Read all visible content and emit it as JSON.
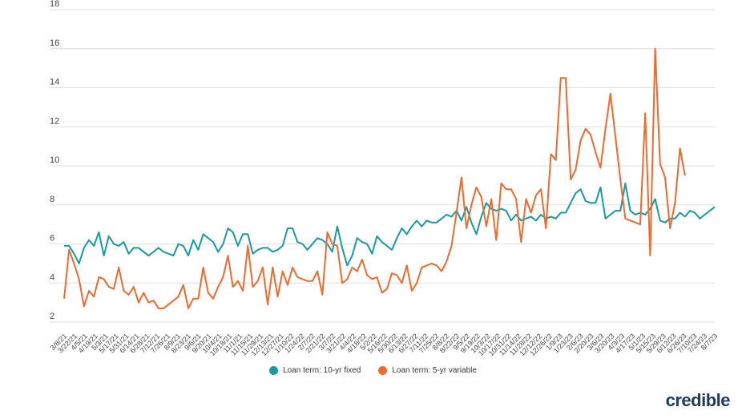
{
  "chart_data": {
    "type": "line",
    "title": "",
    "xlabel": "",
    "ylabel": "",
    "ylim": [
      2,
      18
    ],
    "yticks": [
      2,
      4,
      6,
      8,
      10,
      12,
      14,
      16,
      18
    ],
    "xtick_labels": [
      "3/8/21",
      "3/22/21",
      "4/5/21",
      "4/19/21",
      "5/3/21",
      "5/17/21",
      "5/31/21",
      "6/14/21",
      "6/28/21",
      "7/12/21",
      "7/26/21",
      "8/9/21",
      "8/23/21",
      "9/6/21",
      "9/20/21",
      "10/4/21",
      "10/18/21",
      "11/1/21",
      "11/15/21",
      "11/29/21",
      "12/13/21",
      "12/27/21",
      "1/10/22",
      "1/24/22",
      "2/7/22",
      "2/21/22",
      "3/7/22",
      "3/21/22",
      "4/4/22",
      "4/18/22",
      "5/2/22",
      "5/16/22",
      "5/30/22",
      "6/13/22",
      "6/27/22",
      "7/11/22",
      "7/25/22",
      "8/8/22",
      "8/22/22",
      "9/5/22",
      "9/19/22",
      "10/3/22",
      "10/17/22",
      "10/31/22",
      "11/14/22",
      "11/28/22",
      "12/12/22",
      "12/26/22",
      "1/9/23",
      "1/23/23",
      "2/6/23",
      "2/20/23",
      "3/6/23",
      "3/20/23",
      "4/3/23",
      "4/17/23",
      "5/1/23",
      "5/15/23",
      "5/29/23",
      "6/12/23",
      "6/26/23",
      "7/10/23",
      "7/24/23",
      "8/7/23"
    ],
    "legend_position": "bottom-center",
    "series": [
      {
        "name": "Loan term: 10-yr fixed",
        "color": "#1a9aa0",
        "values": [
          5.9,
          5.9,
          5.5,
          5.0,
          5.8,
          6.2,
          5.9,
          6.6,
          5.4,
          6.4,
          6.0,
          5.9,
          6.1,
          5.5,
          5.8,
          5.8,
          5.6,
          5.4,
          5.6,
          5.8,
          5.6,
          5.5,
          5.4,
          6.0,
          5.9,
          5.4,
          6.2,
          5.7,
          6.5,
          6.3,
          6.1,
          5.6,
          6.0,
          6.8,
          6.6,
          5.9,
          6.5,
          6.5,
          5.5,
          5.7,
          5.8,
          5.8,
          5.6,
          5.7,
          5.9,
          6.8,
          6.8,
          6.1,
          6.0,
          5.7,
          6.0,
          6.3,
          6.2,
          6.0,
          5.6,
          6.9,
          5.8,
          4.9,
          5.4,
          6.3,
          6.1,
          6.0,
          5.5,
          6.4,
          6.1,
          5.9,
          5.7,
          6.3,
          6.8,
          6.5,
          6.9,
          7.2,
          6.9,
          7.2,
          7.1,
          7.1,
          7.3,
          7.5,
          7.4,
          7.7,
          7.2,
          7.9,
          7.1,
          6.5,
          7.4,
          8.1,
          7.8,
          7.7,
          7.8,
          7.7,
          7.2,
          7.5,
          7.2,
          7.3,
          7.4,
          7.2,
          7.5,
          7.3,
          7.4,
          7.3,
          7.6,
          7.6,
          8.1,
          8.6,
          8.8,
          8.2,
          8.1,
          8.1,
          8.9,
          7.3,
          7.5,
          7.7,
          7.7,
          9.1,
          7.7,
          7.5,
          7.6,
          7.5,
          7.8,
          8.3,
          7.2,
          7.1,
          7.3,
          7.3,
          7.6,
          7.4,
          7.7,
          7.6,
          7.3,
          7.5,
          7.7,
          7.9
        ]
      },
      {
        "name": "Loan term: 5-yr variable",
        "color": "#ec6b2e",
        "values": [
          3.2,
          5.7,
          5.0,
          4.2,
          2.8,
          3.6,
          3.3,
          4.3,
          4.2,
          3.8,
          3.7,
          4.8,
          3.6,
          3.4,
          3.8,
          3.0,
          3.5,
          3.0,
          3.1,
          2.7,
          2.7,
          2.9,
          3.1,
          3.3,
          3.9,
          2.7,
          3.2,
          3.2,
          4.8,
          3.5,
          3.2,
          3.8,
          4.3,
          5.4,
          3.8,
          4.1,
          3.6,
          5.9,
          3.8,
          4.1,
          4.8,
          2.9,
          4.8,
          3.3,
          4.6,
          3.9,
          4.8,
          4.3,
          4.2,
          4.1,
          4.1,
          4.6,
          3.4,
          6.6,
          6.0,
          5.9,
          4.0,
          4.2,
          4.8,
          4.6,
          5.2,
          4.4,
          4.2,
          4.3,
          3.5,
          3.7,
          4.5,
          4.4,
          4.0,
          4.9,
          3.6,
          4.0,
          4.8,
          4.9,
          5.0,
          4.9,
          4.6,
          5.1,
          5.9,
          7.6,
          9.4,
          6.8,
          8.0,
          8.9,
          8.4,
          6.9,
          8.3,
          6.2,
          9.1,
          8.8,
          8.8,
          8.3,
          6.1,
          8.3,
          7.6,
          8.5,
          8.8,
          6.8,
          10.6,
          10.3,
          14.5,
          14.5,
          9.3,
          9.8,
          11.3,
          11.9,
          11.6,
          10.7,
          9.9,
          11.9,
          13.7,
          11.5,
          9.3,
          7.3,
          7.2,
          7.1,
          7.0,
          12.7,
          5.4,
          16.0,
          10.1,
          9.4,
          6.8,
          8.1,
          10.9,
          9.5
        ]
      }
    ]
  },
  "legend": {
    "series1_label": "Loan term: 10-yr fixed",
    "series2_label": "Loan term: 5-yr variable"
  },
  "brand": "credible"
}
